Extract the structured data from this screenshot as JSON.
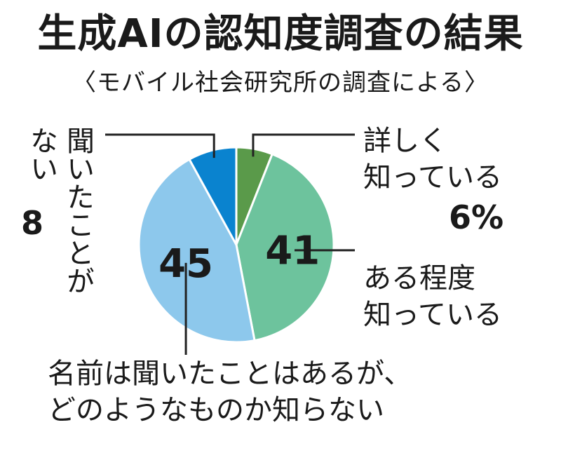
{
  "title": "生成AIの認知度調査の結果",
  "subtitle": "〈モバイル社会研究所の調査による〉",
  "chart_data": {
    "type": "pie",
    "title": "生成AIの認知度調査の結果",
    "slices": [
      {
        "label_lines": [
          "詳しく",
          "知っている"
        ],
        "value": 6,
        "display": "6%",
        "color": "#5a9a4a"
      },
      {
        "label_lines": [
          "ある程度",
          "知っている"
        ],
        "value": 41,
        "display": "41",
        "color": "#6dc39d"
      },
      {
        "label_lines": [
          "名前は聞いたことはあるが、",
          "どのようなものか知らない"
        ],
        "value": 45,
        "display": "45",
        "color": "#8dc8ec"
      },
      {
        "label_lines": [
          "聞いたことが",
          "ない"
        ],
        "value": 8,
        "display": "8",
        "color": "#0a83cf"
      }
    ]
  }
}
